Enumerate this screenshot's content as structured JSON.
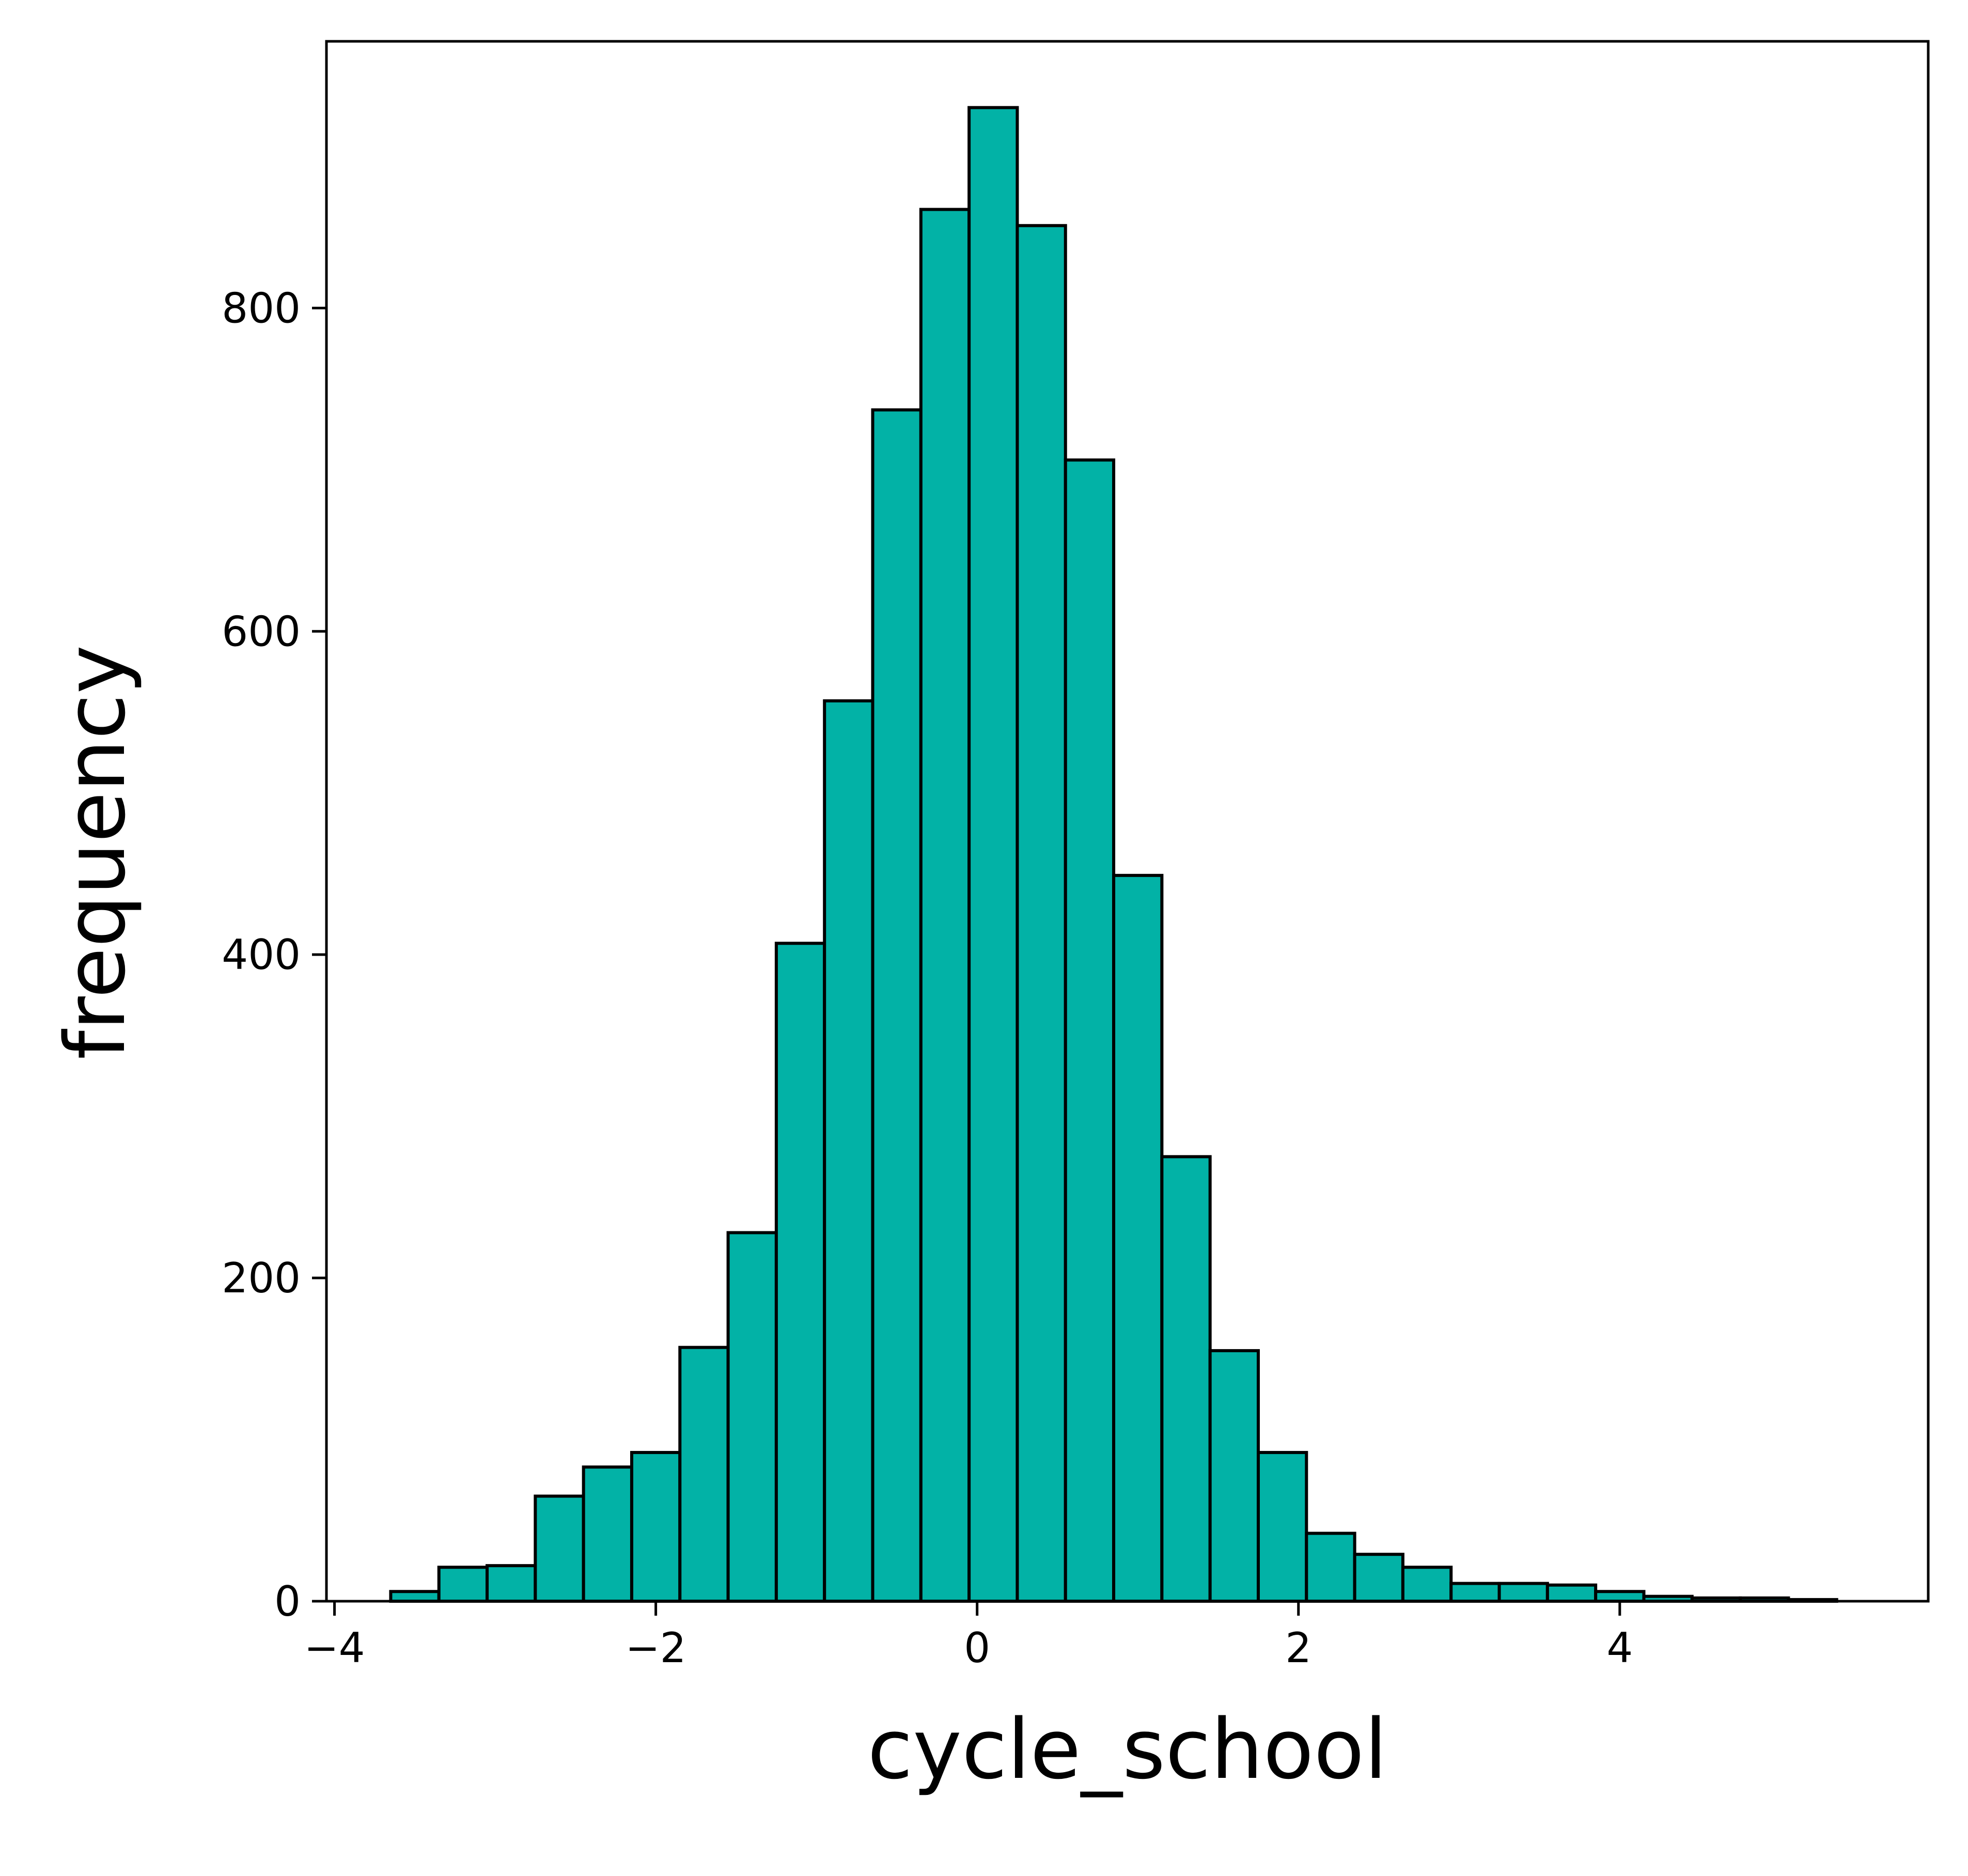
{
  "colors": {
    "bar_fill": "#02b2a6",
    "bar_edge": "#000000",
    "axes": "#000000",
    "background": "#ffffff"
  },
  "chart_data": {
    "type": "bar",
    "subtype": "histogram",
    "xlabel": "cycle_school",
    "ylabel": "frequency",
    "xlim": [
      -4.05,
      5.92
    ],
    "ylim": [
      0,
      965
    ],
    "grid": false,
    "xticks": [
      -4,
      -2,
      0,
      2,
      4
    ],
    "xtick_labels": [
      "−4",
      "−2",
      "0",
      "2",
      "4"
    ],
    "yticks": [
      0,
      200,
      400,
      600,
      800
    ],
    "ytick_labels": [
      "0",
      "200",
      "400",
      "600",
      "800"
    ],
    "bin_edges": [
      -3.65,
      -3.35,
      -3.05,
      -2.75,
      -2.45,
      -2.15,
      -1.85,
      -1.55,
      -1.25,
      -0.95,
      -0.65,
      -0.35,
      -0.05,
      0.25,
      0.55,
      0.85,
      1.15,
      1.45,
      1.75,
      2.05,
      2.35,
      2.65,
      2.95,
      3.25,
      3.55,
      3.85,
      4.15,
      4.45,
      4.75,
      5.05,
      5.35
    ],
    "values": [
      6,
      21,
      22,
      65,
      83,
      92,
      157,
      228,
      407,
      557,
      737,
      861,
      924,
      851,
      706,
      449,
      275,
      155,
      92,
      42,
      29,
      21,
      11,
      11,
      10,
      6,
      3,
      2,
      2,
      1
    ]
  }
}
